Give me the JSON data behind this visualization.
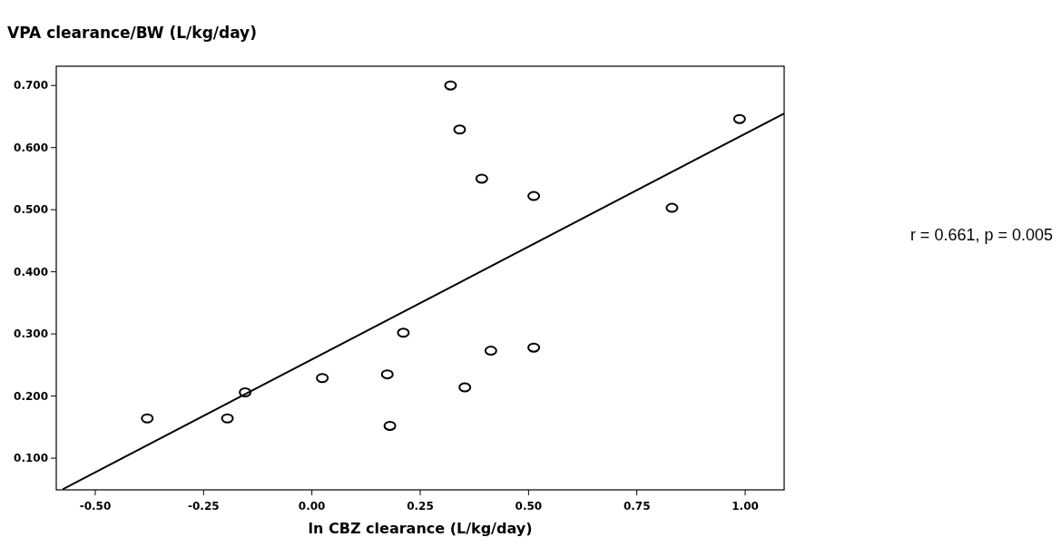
{
  "chart_data": {
    "type": "scatter",
    "ylabel": "VPA clearance/BW (L/kg/day)",
    "xlabel": "ln CBZ clearance (L/kg/day)",
    "annotations": [
      "r = 0.661, p = 0.005"
    ],
    "marker": "circle",
    "grid": false,
    "xlim": [
      -0.59,
      1.09
    ],
    "ylim": [
      0.049,
      0.731
    ],
    "xticks": [
      {
        "value": -0.5,
        "label": "-0.50"
      },
      {
        "value": -0.25,
        "label": "-0.25"
      },
      {
        "value": 0,
        "label": "0.00"
      },
      {
        "value": 0.25,
        "label": "0.25"
      },
      {
        "value": 0.5,
        "label": "0.50"
      },
      {
        "value": 0.75,
        "label": "0.75"
      },
      {
        "value": 1,
        "label": "1.00"
      }
    ],
    "yticks": [
      {
        "value": 0.1,
        "label": "0.100"
      },
      {
        "value": 0.2,
        "label": "0.200"
      },
      {
        "value": 0.3,
        "label": "0.300"
      },
      {
        "value": 0.4,
        "label": "0.400"
      },
      {
        "value": 0.5,
        "label": "0.500"
      },
      {
        "value": 0.6,
        "label": "0.600"
      },
      {
        "value": 0.7,
        "label": "0.700"
      }
    ],
    "series": [
      {
        "color": "#000000",
        "x": [
          -0.38,
          -0.195,
          -0.154,
          0.024,
          0.174,
          0.18,
          0.211,
          0.32,
          0.341,
          0.353,
          0.392,
          0.413,
          0.512,
          0.512,
          0.831,
          0.987
        ],
        "values": [
          0.164,
          0.164,
          0.206,
          0.229,
          0.235,
          0.152,
          0.302,
          0.7,
          0.629,
          0.214,
          0.55,
          0.273,
          0.522,
          0.278,
          0.503,
          0.646
        ]
      },
      {
        "type": "line",
        "marker": "none",
        "color": "#000000",
        "x": [
          -0.575,
          1.09
        ],
        "values": [
          0.05,
          0.655
        ]
      }
    ]
  }
}
